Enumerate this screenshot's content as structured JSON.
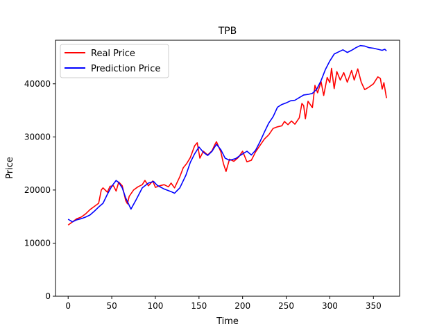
{
  "chart_data": {
    "type": "line",
    "title": "TPB",
    "xlabel": "Time",
    "ylabel": "Price",
    "xlim": [
      -14.5,
      380
    ],
    "ylim": [
      0,
      48200
    ],
    "xticks": [
      0,
      50,
      100,
      150,
      200,
      250,
      300,
      350
    ],
    "yticks": [
      0,
      10000,
      20000,
      30000,
      40000
    ],
    "legend_position": "upper-left",
    "grid": false,
    "series": [
      {
        "name": "Real Price",
        "color": "#ff0000",
        "points": [
          [
            0,
            13400
          ],
          [
            5,
            14000
          ],
          [
            10,
            14600
          ],
          [
            15,
            14900
          ],
          [
            20,
            15500
          ],
          [
            25,
            16300
          ],
          [
            30,
            16900
          ],
          [
            35,
            17500
          ],
          [
            38,
            20000
          ],
          [
            40,
            20400
          ],
          [
            45,
            19600
          ],
          [
            48,
            20700
          ],
          [
            52,
            20800
          ],
          [
            55,
            19800
          ],
          [
            58,
            21500
          ],
          [
            62,
            20800
          ],
          [
            66,
            18000
          ],
          [
            68,
            17400
          ],
          [
            70,
            18800
          ],
          [
            75,
            20000
          ],
          [
            80,
            20600
          ],
          [
            85,
            21000
          ],
          [
            88,
            21800
          ],
          [
            92,
            20800
          ],
          [
            97,
            21700
          ],
          [
            100,
            20500
          ],
          [
            105,
            20800
          ],
          [
            110,
            21000
          ],
          [
            115,
            20600
          ],
          [
            118,
            21300
          ],
          [
            122,
            20400
          ],
          [
            128,
            22500
          ],
          [
            132,
            24200
          ],
          [
            136,
            25000
          ],
          [
            140,
            26100
          ],
          [
            145,
            28300
          ],
          [
            148,
            28900
          ],
          [
            151,
            26000
          ],
          [
            155,
            27300
          ],
          [
            160,
            26600
          ],
          [
            165,
            27400
          ],
          [
            168,
            28500
          ],
          [
            170,
            29100
          ],
          [
            175,
            27200
          ],
          [
            178,
            25000
          ],
          [
            181,
            23500
          ],
          [
            185,
            25800
          ],
          [
            190,
            25400
          ],
          [
            195,
            26100
          ],
          [
            200,
            27300
          ],
          [
            205,
            25300
          ],
          [
            210,
            25600
          ],
          [
            215,
            27200
          ],
          [
            220,
            28400
          ],
          [
            225,
            29600
          ],
          [
            230,
            30400
          ],
          [
            235,
            31600
          ],
          [
            240,
            31900
          ],
          [
            245,
            32100
          ],
          [
            248,
            32900
          ],
          [
            252,
            32300
          ],
          [
            256,
            33000
          ],
          [
            260,
            32400
          ],
          [
            265,
            33600
          ],
          [
            268,
            36300
          ],
          [
            270,
            35900
          ],
          [
            272,
            33400
          ],
          [
            275,
            36700
          ],
          [
            280,
            35500
          ],
          [
            283,
            39700
          ],
          [
            286,
            38300
          ],
          [
            290,
            40400
          ],
          [
            293,
            37800
          ],
          [
            297,
            41200
          ],
          [
            300,
            40200
          ],
          [
            302,
            42900
          ],
          [
            305,
            39100
          ],
          [
            308,
            42300
          ],
          [
            312,
            40700
          ],
          [
            316,
            42100
          ],
          [
            320,
            40300
          ],
          [
            325,
            42500
          ],
          [
            328,
            40700
          ],
          [
            332,
            42800
          ],
          [
            336,
            40300
          ],
          [
            340,
            38900
          ],
          [
            345,
            39400
          ],
          [
            350,
            40000
          ],
          [
            355,
            41300
          ],
          [
            358,
            41000
          ],
          [
            360,
            39000
          ],
          [
            362,
            40200
          ],
          [
            365,
            37300
          ]
        ]
      },
      {
        "name": "Prediction Price",
        "color": "#0000ff",
        "points": [
          [
            0,
            14500
          ],
          [
            5,
            14000
          ],
          [
            10,
            14400
          ],
          [
            15,
            14600
          ],
          [
            20,
            14900
          ],
          [
            25,
            15300
          ],
          [
            30,
            16000
          ],
          [
            35,
            16800
          ],
          [
            40,
            17500
          ],
          [
            45,
            19200
          ],
          [
            50,
            20700
          ],
          [
            55,
            21800
          ],
          [
            58,
            21400
          ],
          [
            62,
            20400
          ],
          [
            66,
            18500
          ],
          [
            72,
            16400
          ],
          [
            78,
            18200
          ],
          [
            85,
            20400
          ],
          [
            92,
            21300
          ],
          [
            98,
            21600
          ],
          [
            102,
            20900
          ],
          [
            110,
            20200
          ],
          [
            118,
            19700
          ],
          [
            122,
            19400
          ],
          [
            128,
            20400
          ],
          [
            135,
            22800
          ],
          [
            140,
            25200
          ],
          [
            145,
            26800
          ],
          [
            150,
            28100
          ],
          [
            155,
            27100
          ],
          [
            160,
            26500
          ],
          [
            165,
            27300
          ],
          [
            170,
            28600
          ],
          [
            175,
            27600
          ],
          [
            180,
            26000
          ],
          [
            185,
            25600
          ],
          [
            192,
            25900
          ],
          [
            198,
            26600
          ],
          [
            205,
            27300
          ],
          [
            210,
            26600
          ],
          [
            215,
            27500
          ],
          [
            220,
            29100
          ],
          [
            225,
            30900
          ],
          [
            230,
            32600
          ],
          [
            235,
            33800
          ],
          [
            240,
            35600
          ],
          [
            245,
            36100
          ],
          [
            250,
            36400
          ],
          [
            255,
            36800
          ],
          [
            260,
            36900
          ],
          [
            265,
            37400
          ],
          [
            270,
            37900
          ],
          [
            275,
            38000
          ],
          [
            280,
            38200
          ],
          [
            285,
            39000
          ],
          [
            290,
            40600
          ],
          [
            295,
            42700
          ],
          [
            300,
            44300
          ],
          [
            305,
            45600
          ],
          [
            310,
            46000
          ],
          [
            315,
            46400
          ],
          [
            320,
            45900
          ],
          [
            325,
            46300
          ],
          [
            330,
            46800
          ],
          [
            335,
            47200
          ],
          [
            340,
            47100
          ],
          [
            345,
            46800
          ],
          [
            350,
            46700
          ],
          [
            355,
            46500
          ],
          [
            360,
            46300
          ],
          [
            363,
            46500
          ],
          [
            365,
            46200
          ]
        ]
      }
    ]
  }
}
